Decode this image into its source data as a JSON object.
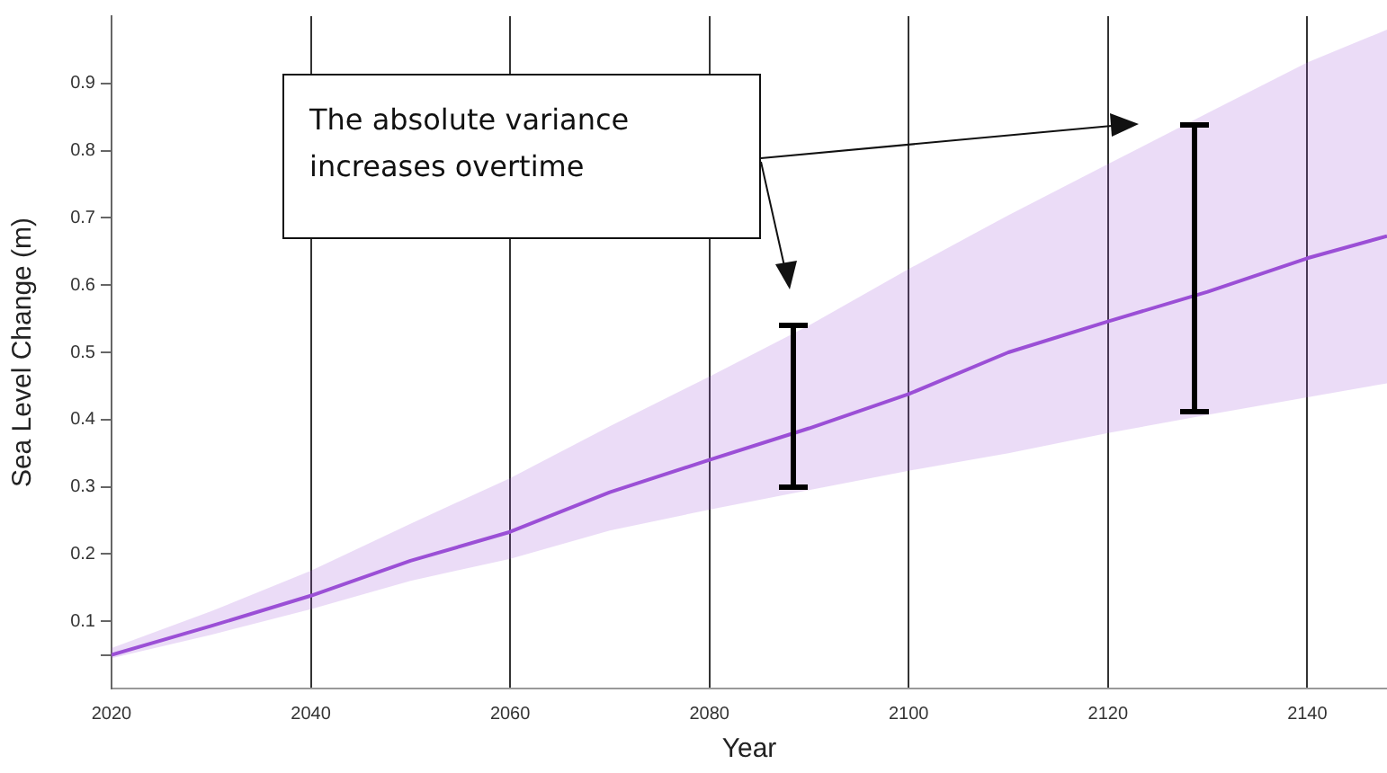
{
  "chart_data": {
    "type": "line",
    "xlabel": "Year",
    "ylabel": "Sea Level Change (m)",
    "xlim": [
      2020,
      2148
    ],
    "ylim": [
      0,
      1
    ],
    "xticks": [
      2020,
      2040,
      2060,
      2080,
      2100,
      2120,
      2140
    ],
    "yticks": [
      {
        "value": 0.05,
        "label": null
      },
      0.1,
      0.2,
      0.3,
      0.4,
      0.5,
      0.6,
      0.7,
      0.8,
      0.9
    ],
    "grid": "x",
    "annotations": [
      "The absolute variance increases overtime"
    ],
    "series": [
      {
        "color": "#9b4fd6",
        "x": [
          2020,
          2030,
          2040,
          2050,
          2060,
          2070,
          2080,
          2090,
          2100,
          2110,
          2120,
          2130,
          2140,
          2148
        ],
        "values": [
          0.05,
          0.093,
          0.138,
          0.19,
          0.233,
          0.292,
          0.34,
          0.387,
          0.438,
          0.5,
          0.546,
          0.59,
          0.64,
          0.673
        ],
        "upper": [
          0.06,
          0.115,
          0.175,
          0.245,
          0.313,
          0.39,
          0.464,
          0.54,
          0.624,
          0.704,
          0.78,
          0.856,
          0.931,
          0.98
        ],
        "lower": [
          0.045,
          0.08,
          0.118,
          0.16,
          0.193,
          0.235,
          0.266,
          0.295,
          0.324,
          0.35,
          0.38,
          0.407,
          0.433,
          0.454
        ]
      }
    ]
  }
}
